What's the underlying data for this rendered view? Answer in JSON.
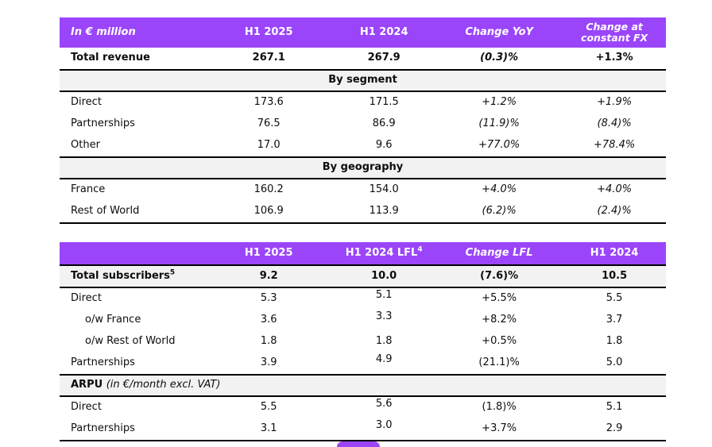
{
  "colors": {
    "accent_purple": "#9b45fa",
    "section_gray": "#f2f2f2",
    "text_black": "#0d0d0d"
  },
  "revenue_table": {
    "header": {
      "unit": "In € million",
      "h1_2025": "H1 2025",
      "h1_2024": "H1 2024",
      "change_yoy": "Change YoY",
      "change_fx": "Change at constant FX"
    },
    "total": {
      "label": "Total revenue",
      "values": [
        "267.1",
        "267.9",
        "(0.3)%",
        "+1.3%"
      ]
    },
    "segment_section": "By segment",
    "segment_rows": [
      {
        "label": "Direct",
        "values": [
          "173.6",
          "171.5",
          "+1.2%",
          "+1.9%"
        ]
      },
      {
        "label": "Partnerships",
        "values": [
          "76.5",
          "86.9",
          "(11.9)%",
          "(8.4)%"
        ]
      },
      {
        "label": "Other",
        "values": [
          "17.0",
          "9.6",
          "+77.0%",
          "+78.4%"
        ]
      }
    ],
    "geography_section": "By geography",
    "geography_rows": [
      {
        "label": "France",
        "values": [
          "160.2",
          "154.0",
          "+4.0%",
          "+4.0%"
        ]
      },
      {
        "label": "Rest of World",
        "values": [
          "106.9",
          "113.9",
          "(6.2)%",
          "(2.4)%"
        ]
      }
    ]
  },
  "subscribers_table": {
    "header": {
      "blank": "",
      "h1_2025": "H1 2025",
      "h1_2024_lfl": "H1 2024 LFL",
      "h1_2024_lfl_sup": "4",
      "change_lfl": "Change LFL",
      "h1_2024": "H1 2024"
    },
    "total": {
      "label": "Total subscribers",
      "sup": "5",
      "values": [
        "9.2",
        "10.0",
        "(7.6)%",
        "10.5"
      ]
    },
    "rows": [
      {
        "label": "Direct",
        "values": [
          "5.3",
          "5.1",
          "+5.5%",
          "5.5"
        ]
      },
      {
        "label": "o/w France",
        "values": [
          "3.6",
          "3.3",
          "+8.2%",
          "3.7"
        ]
      },
      {
        "label": "o/w Rest of World",
        "values": [
          "1.8",
          "1.8",
          "+0.5%",
          "1.8"
        ]
      },
      {
        "label": "Partnerships",
        "values": [
          "3.9",
          "4.9",
          "(21.1)%",
          "5.0"
        ]
      }
    ],
    "arpu_section": {
      "label": "ARPU",
      "note": "(in €/month excl. VAT)"
    },
    "arpu_rows": [
      {
        "label": "Direct",
        "values": [
          "5.5",
          "5.6",
          "(1.8)%",
          "5.1"
        ]
      },
      {
        "label": "Partnerships",
        "values": [
          "3.1",
          "3.0",
          "+3.7%",
          "2.9"
        ]
      }
    ]
  }
}
